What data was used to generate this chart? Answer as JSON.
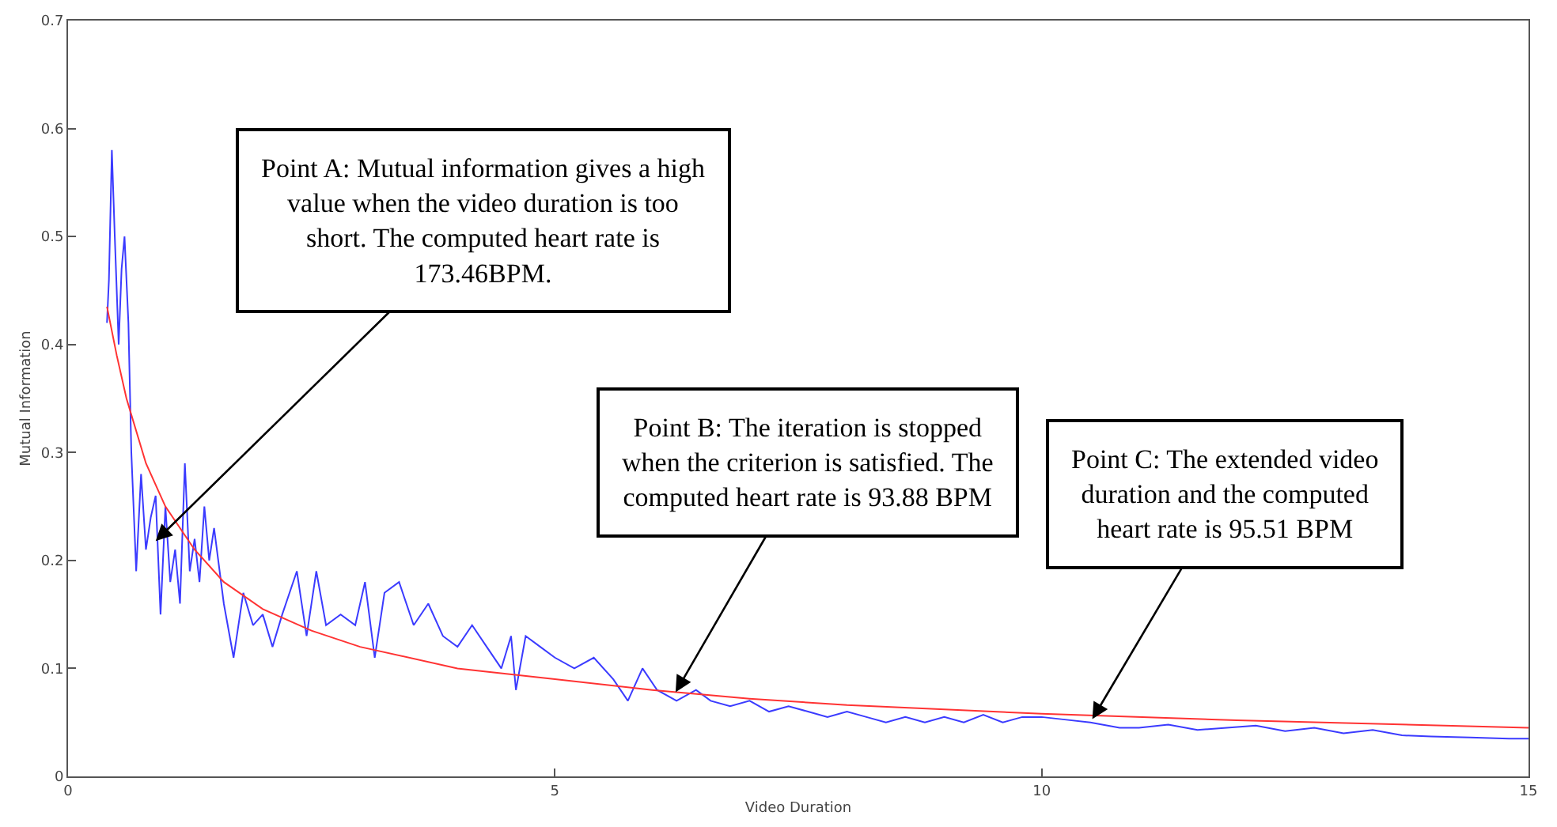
{
  "chart_data": {
    "type": "line",
    "xlabel": "Video Duration",
    "ylabel": "Mutual Information",
    "xlim": [
      0,
      15
    ],
    "xticks": [
      0,
      5,
      10,
      15
    ],
    "ylim": [
      0,
      0.7
    ],
    "yticks": [
      0,
      0.1,
      0.2,
      0.3,
      0.4,
      0.5,
      0.6,
      0.7
    ],
    "marker": "none",
    "line_style": "solid",
    "series": [
      {
        "color": "#3b3bff",
        "x": [
          0.4,
          0.42,
          0.45,
          0.48,
          0.52,
          0.55,
          0.58,
          0.62,
          0.65,
          0.7,
          0.75,
          0.8,
          0.85,
          0.9,
          0.95,
          1.0,
          1.05,
          1.1,
          1.15,
          1.2,
          1.25,
          1.3,
          1.35,
          1.4,
          1.45,
          1.5,
          1.6,
          1.7,
          1.8,
          1.9,
          2.0,
          2.1,
          2.2,
          2.35,
          2.45,
          2.55,
          2.65,
          2.8,
          2.95,
          3.05,
          3.15,
          3.25,
          3.4,
          3.55,
          3.7,
          3.85,
          4.0,
          4.15,
          4.3,
          4.45,
          4.55,
          4.6,
          4.7,
          4.85,
          5.0,
          5.2,
          5.4,
          5.6,
          5.75,
          5.9,
          6.05,
          6.25,
          6.45,
          6.6,
          6.8,
          7.0,
          7.2,
          7.4,
          7.6,
          7.8,
          8.0,
          8.2,
          8.4,
          8.6,
          8.8,
          9.0,
          9.2,
          9.4,
          9.6,
          9.8,
          10.0,
          10.2,
          10.5,
          10.8,
          11.0,
          11.3,
          11.6,
          11.9,
          12.2,
          12.5,
          12.8,
          13.1,
          13.4,
          13.7,
          14.0,
          14.4,
          14.8,
          15.0
        ],
        "values": [
          0.42,
          0.46,
          0.58,
          0.5,
          0.4,
          0.47,
          0.5,
          0.42,
          0.3,
          0.19,
          0.28,
          0.21,
          0.24,
          0.26,
          0.15,
          0.25,
          0.18,
          0.21,
          0.16,
          0.29,
          0.19,
          0.22,
          0.18,
          0.25,
          0.2,
          0.23,
          0.16,
          0.11,
          0.17,
          0.14,
          0.15,
          0.12,
          0.15,
          0.19,
          0.13,
          0.19,
          0.14,
          0.15,
          0.14,
          0.18,
          0.11,
          0.17,
          0.18,
          0.14,
          0.16,
          0.13,
          0.12,
          0.14,
          0.12,
          0.1,
          0.13,
          0.08,
          0.13,
          0.12,
          0.11,
          0.1,
          0.11,
          0.09,
          0.07,
          0.1,
          0.08,
          0.07,
          0.08,
          0.07,
          0.065,
          0.07,
          0.06,
          0.065,
          0.06,
          0.055,
          0.06,
          0.055,
          0.05,
          0.055,
          0.05,
          0.055,
          0.05,
          0.057,
          0.05,
          0.055,
          0.055,
          0.053,
          0.05,
          0.045,
          0.045,
          0.048,
          0.043,
          0.045,
          0.047,
          0.042,
          0.045,
          0.04,
          0.043,
          0.038,
          0.037,
          0.036,
          0.035,
          0.035
        ]
      },
      {
        "color": "#ff3333",
        "x": [
          0.4,
          0.5,
          0.6,
          0.8,
          1.0,
          1.3,
          1.6,
          2.0,
          2.5,
          3.0,
          4.0,
          5.0,
          6.0,
          7.0,
          8.0,
          10.0,
          12.0,
          15.0
        ],
        "values": [
          0.435,
          0.39,
          0.35,
          0.29,
          0.25,
          0.21,
          0.18,
          0.155,
          0.135,
          0.12,
          0.1,
          0.09,
          0.08,
          0.072,
          0.066,
          0.058,
          0.052,
          0.045
        ]
      }
    ],
    "annotations": [
      {
        "text": "Point A: Mutual information gives a high\nvalue when the video duration is too\nshort. The computed heart rate is\n173.46BPM.",
        "x": 0.9,
        "y": 0.218
      },
      {
        "text": "Point B: The iteration is stopped\nwhen the criterion is satisfied. The\ncomputed heart rate is 93.88 BPM",
        "x": 6.24,
        "y": 0.078
      },
      {
        "text": "Point C: The extended video\nduration and the computed\nheart rate is 95.51 BPM",
        "x": 10.52,
        "y": 0.053
      }
    ]
  }
}
